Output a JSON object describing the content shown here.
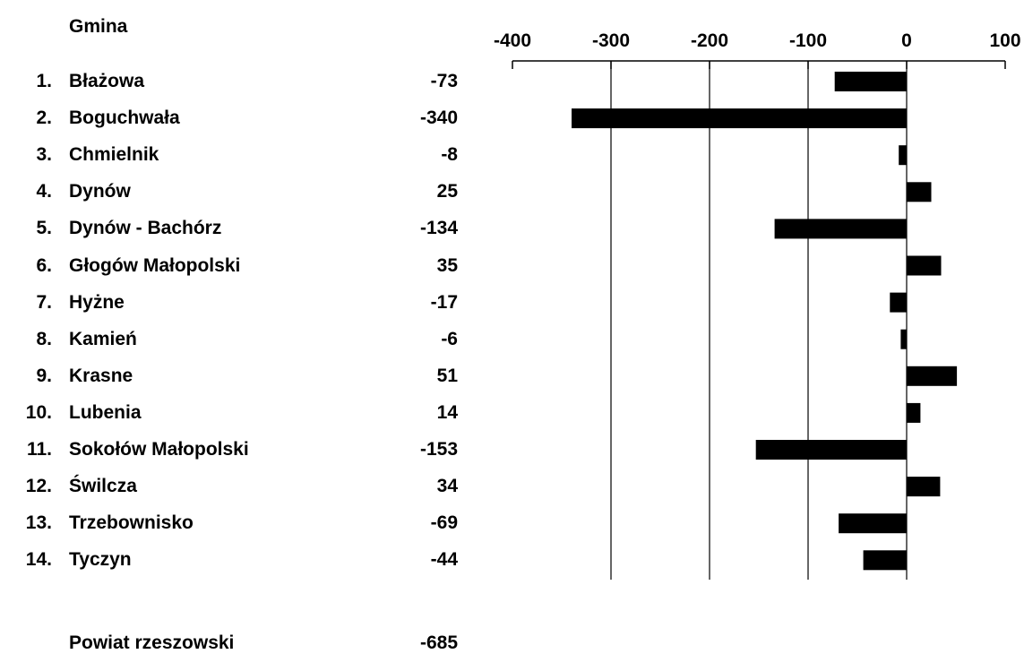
{
  "header": {
    "column_label": "Gmina"
  },
  "chart_data": {
    "type": "bar",
    "orientation": "horizontal",
    "title": "",
    "xlabel": "",
    "ylabel": "",
    "xlim": [
      -400,
      100
    ],
    "xticks": [
      -400,
      -300,
      -200,
      -100,
      0,
      100
    ],
    "xtick_labels": [
      "-400",
      "-300",
      "-200",
      "-100",
      "0",
      "100"
    ],
    "grid": true,
    "bar_color": "#000000",
    "categories": [
      "Błażowa",
      "Boguchwała",
      "Chmielnik",
      "Dynów",
      "Dynów - Bachórz",
      "Głogów Małopolski",
      "Hyżne",
      "Kamień",
      "Krasne",
      "Lubenia",
      "Sokołów Małopolski",
      "Świlcza",
      "Trzebownisko",
      "Tyczyn"
    ],
    "numbers": [
      "1.",
      "2.",
      "3.",
      "4.",
      "5.",
      "6.",
      "7.",
      "8.",
      "9.",
      "10.",
      "11.",
      "12.",
      "13.",
      "14."
    ],
    "values": [
      -73,
      -340,
      -8,
      25,
      -134,
      35,
      -17,
      -6,
      51,
      14,
      -153,
      34,
      -69,
      -44
    ],
    "value_labels": [
      "-73",
      "-340",
      "-8",
      "25",
      "-134",
      "35",
      "-17",
      "-6",
      "51",
      "14",
      "-153",
      "34",
      "-69",
      "-44"
    ]
  },
  "total": {
    "label": "Powiat rzeszowski",
    "value": "-685"
  }
}
